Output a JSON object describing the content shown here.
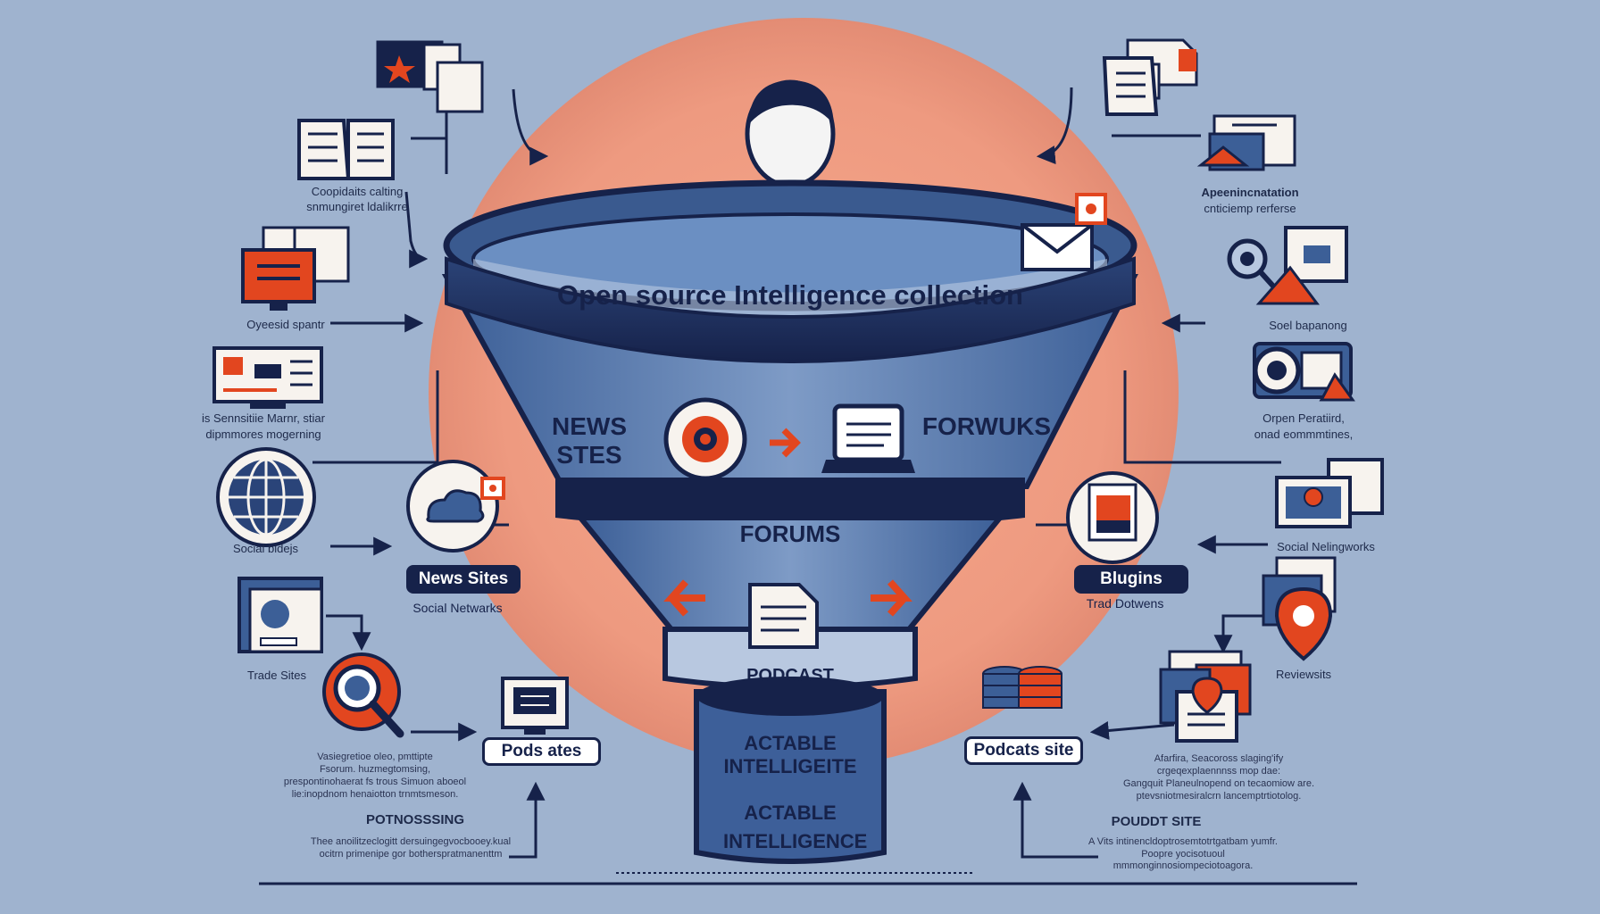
{
  "funnel": {
    "title": "Open source Intelligence collection",
    "band_left": "NEWS STES",
    "band_right": "FORWUKS",
    "middle_label": "FORUMS",
    "bottom_label": "PODCAST",
    "stem_label_1": "ACTABLE INTELLIGEITE",
    "stem_label_2": "ACTABLE INTELLIGENCE"
  },
  "left_labels": {
    "l1_line1": "Coopidaits calting",
    "l1_line2": "snmungiret ldalikrre",
    "l2": "Oyeesid spantr",
    "l3_line1": "is Sennsitiie Marnr, stiar",
    "l3_line2": "dipmmores mogerning",
    "l4": "Social bidejs",
    "l5": "Trade Sites",
    "para_lines": [
      "Vasiegretioe oleo, pmttipte",
      "Fsorum. huzmegtomsing,",
      "prespontinohaerat fs trous Simuon aboeol",
      "lie:inopdnom henaiotton trnmtsmeson."
    ],
    "heading": "POTNOSSSING",
    "bottom_lines": [
      "Thee anoilitzeclogitt dersuingegvocbooey.kual",
      "ocitrn primenipe gor botherspratmanenttm"
    ]
  },
  "right_labels": {
    "r1_line1": "Apeenincnatation",
    "r1_line2": "cnticiemp rerferse",
    "r2": "Soel bapanong",
    "r3_line1": "Orpen Peratiird,",
    "r3_line2": "onad eommmtines,",
    "r4": "Social Nelingworks",
    "r5": "Reviewsits",
    "para_lines": [
      "Afarfira, Seacoross slaging'ify",
      "crgeqexplaennnss mop dae:",
      "Gangquit Planeulnopend on tecaomiow are.",
      "ptevsniotmesiralcrn lancemptrtiotolog."
    ],
    "heading": "POUDDT SITE",
    "bottom_lines": [
      "A Vits intinencldoptrosemtotrtgatbam yumfr.",
      "Poopre yocisotuoul mmmonginnosiompeciotoagora."
    ]
  },
  "inner_pills": {
    "news_sites": "News Sites",
    "social_networks": "Social Netwarks",
    "blogins": "Blugins",
    "trad": "Trad Dotwens",
    "pods_ates": "Pods ates",
    "podcats_site": "Podcats site"
  },
  "colors": {
    "background": "#9fb3cf",
    "navy": "#16224a",
    "accent": "#e2461f",
    "salmon": "#f0a78c"
  }
}
